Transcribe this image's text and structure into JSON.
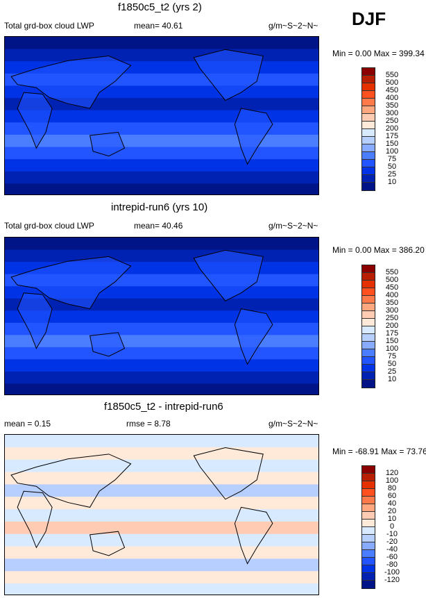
{
  "season": "DJF",
  "colors": [
    "#8b0000",
    "#b81e00",
    "#e53000",
    "#ff5020",
    "#ff7a4a",
    "#ffa880",
    "#ffccb3",
    "#ffeada",
    "#d8eaff",
    "#b6cfff",
    "#88aaff",
    "#4b7dff",
    "#2255ff",
    "#0033e6",
    "#0022b3",
    "#001488"
  ],
  "panels": [
    {
      "title": "f1850c5_t2 (yrs 2)",
      "left": "Total grd-box cloud LWP",
      "center": "mean=  40.61",
      "units": "g/m~S~2~N~",
      "minmax": "Min =   0.00 Max = 399.34",
      "levels": [
        "550",
        "500",
        "450",
        "400",
        "350",
        "300",
        "250",
        "200",
        "175",
        "150",
        "100",
        "75",
        "50",
        "25",
        "10"
      ]
    },
    {
      "title": "intrepid-run6 (yrs 10)",
      "left": "Total grd-box cloud LWP",
      "center": "mean=  40.46",
      "units": "g/m~S~2~N~",
      "minmax": "Min =   0.00 Max = 386.20",
      "levels": [
        "550",
        "500",
        "450",
        "400",
        "350",
        "300",
        "250",
        "200",
        "175",
        "150",
        "100",
        "75",
        "50",
        "25",
        "10"
      ]
    },
    {
      "title": "f1850c5_t2 - intrepid-run6",
      "left": "mean =   0.15",
      "center": "rmse =   8.78",
      "units": "g/m~S~2~N~",
      "minmax": "Min = -68.91 Max =  73.76",
      "levels": [
        "120",
        "100",
        "80",
        "60",
        "40",
        "20",
        "10",
        "0",
        "-10",
        "-20",
        "-40",
        "-60",
        "-80",
        "-100",
        "-120"
      ]
    }
  ]
}
